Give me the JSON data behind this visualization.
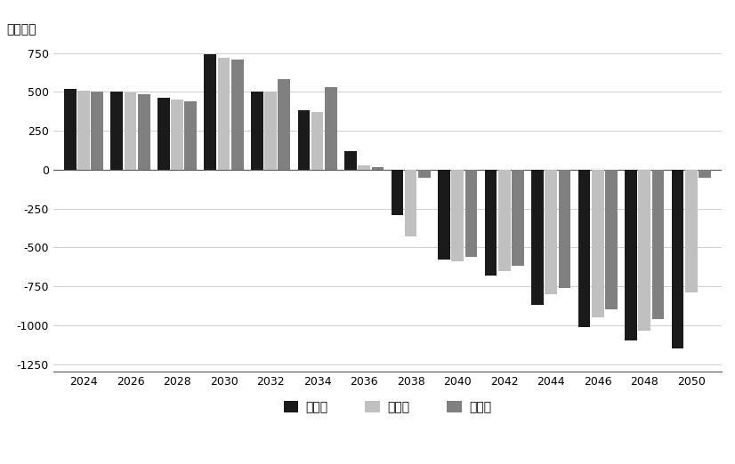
{
  "years": [
    2024,
    2026,
    2028,
    2030,
    2032,
    2034,
    2036,
    2038,
    2040,
    2042,
    2044,
    2046,
    2048,
    2050
  ],
  "low": [
    520,
    500,
    460,
    740,
    500,
    380,
    120,
    -290,
    -580,
    -680,
    -870,
    -1010,
    -1100,
    -1150
  ],
  "mid": [
    510,
    495,
    450,
    720,
    500,
    370,
    30,
    -430,
    -590,
    -650,
    -800,
    -950,
    -1035,
    -790
  ],
  "high": [
    505,
    485,
    440,
    710,
    580,
    530,
    15,
    -50,
    -560,
    -620,
    -760,
    -900,
    -960,
    -50
  ],
  "series_labels": [
    "低方案",
    "中方案",
    "高方案"
  ],
  "series_colors": [
    "#1a1a1a",
    "#c0c0c0",
    "#808080"
  ],
  "ylabel": "（万人）",
  "ylim": [
    -1300,
    820
  ],
  "yticks": [
    -1250,
    -1000,
    -750,
    -500,
    -250,
    0,
    250,
    500,
    750
  ],
  "background_color": "#ffffff",
  "grid_color": "#d0d0d0",
  "bar_width": 0.26,
  "figwidth": 8.26,
  "figheight": 5.22,
  "dpi": 100
}
